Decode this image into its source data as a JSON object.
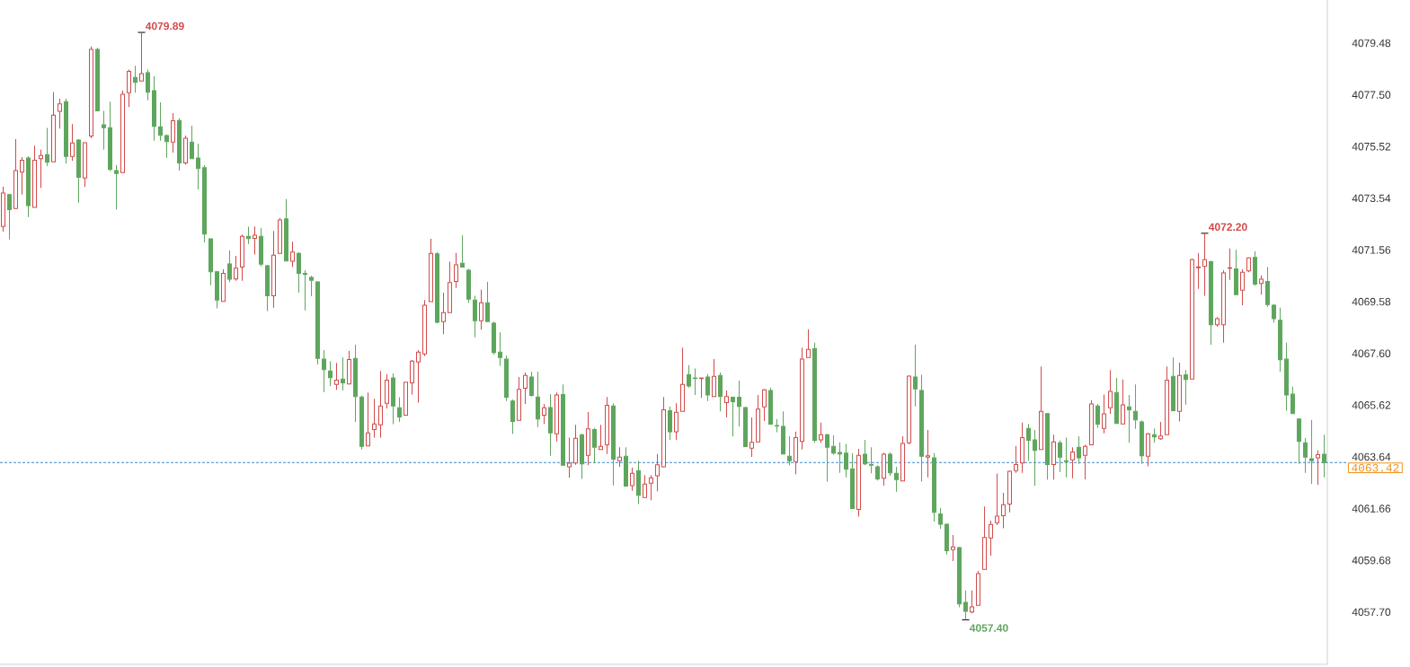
{
  "chart_data": {
    "type": "candlestick",
    "tick_labels": "y",
    "categories": [
      null,
      null,
      null,
      null,
      null,
      null,
      null,
      null,
      null,
      null,
      null,
      null,
      null,
      null,
      null,
      null,
      null,
      null,
      null,
      null,
      null,
      null,
      null,
      null,
      null,
      null,
      null,
      null,
      null,
      null,
      null,
      null,
      null,
      null,
      null,
      null,
      null,
      null,
      null,
      null,
      null,
      null,
      null,
      null,
      null,
      null,
      null,
      null,
      null,
      null,
      null,
      null,
      null,
      null,
      null,
      null,
      null,
      null,
      null,
      null,
      null,
      null,
      null,
      null,
      null,
      null,
      null,
      null,
      null,
      null,
      null,
      null,
      null,
      null,
      null,
      null,
      null,
      null,
      null,
      null,
      null,
      null,
      null,
      null,
      null,
      null,
      null,
      null,
      null,
      null,
      null,
      null,
      null,
      null,
      null,
      null,
      null,
      null,
      null,
      null,
      null,
      null,
      null,
      null,
      null,
      null,
      null,
      null,
      null,
      null,
      null,
      null,
      null,
      null,
      null,
      null,
      null,
      null,
      null,
      null,
      null,
      null,
      null,
      null,
      null,
      null,
      null,
      null,
      null,
      null,
      null,
      null,
      null,
      null,
      null,
      null,
      null,
      null,
      null,
      null,
      null,
      null,
      null,
      null,
      null,
      null,
      null,
      null,
      null,
      null,
      null,
      null,
      null,
      null,
      null,
      null,
      null,
      null,
      null,
      null,
      null,
      null,
      null,
      null,
      null,
      null,
      null,
      null,
      null,
      null,
      null,
      null,
      null,
      null,
      null,
      null,
      null,
      null,
      null,
      null,
      null,
      null,
      null,
      null,
      null,
      null,
      null,
      null,
      null,
      null,
      null,
      null,
      null,
      null,
      null,
      null,
      null,
      null,
      null,
      null,
      null,
      null,
      null,
      null,
      null,
      null,
      null,
      null,
      null,
      null,
      null
    ],
    "ohlc": [
      [
        4072.46,
        4073.98,
        4072.26,
        4073.74
      ],
      [
        4073.68,
        4073.71,
        4071.96,
        4073.11
      ],
      [
        4073.15,
        4075.8,
        4073.12,
        4074.6
      ],
      [
        4074.54,
        4075.12,
        4073.68,
        4075.0
      ],
      [
        4075.08,
        4075.15,
        4072.82,
        4073.26
      ],
      [
        4073.19,
        4075.55,
        4073.19,
        4075.0
      ],
      [
        4075.06,
        4075.4,
        4073.94,
        4075.18
      ],
      [
        4075.21,
        4076.23,
        4074.77,
        4074.92
      ],
      [
        4074.94,
        4077.61,
        4074.94,
        4076.72
      ],
      [
        4076.87,
        4077.35,
        4076.21,
        4077.15
      ],
      [
        4077.24,
        4077.35,
        4074.87,
        4075.14
      ],
      [
        4075.14,
        4076.38,
        4074.97,
        4075.66
      ],
      [
        4075.77,
        4075.8,
        4073.37,
        4074.34
      ],
      [
        4074.32,
        4075.67,
        4073.97,
        4075.67
      ],
      [
        4075.92,
        4079.35,
        4075.84,
        4079.24
      ],
      [
        4079.24,
        4079.3,
        4076.89,
        4076.89
      ],
      [
        4076.35,
        4076.89,
        4075.4,
        4076.24
      ],
      [
        4076.24,
        4077.24,
        4074.58,
        4074.64
      ],
      [
        4074.6,
        4074.81,
        4073.11,
        4074.49
      ],
      [
        4074.52,
        4077.66,
        4074.52,
        4077.52
      ],
      [
        4077.58,
        4078.47,
        4077.03,
        4078.4
      ],
      [
        4078.17,
        4078.61,
        4077.58,
        4077.98
      ],
      [
        4078.03,
        4079.89,
        4078.03,
        4078.31
      ],
      [
        4078.35,
        4078.47,
        4077.29,
        4077.6
      ],
      [
        4077.66,
        4078.21,
        4075.74,
        4076.29
      ],
      [
        4076.28,
        4077.21,
        4075.74,
        4075.95
      ],
      [
        4075.94,
        4075.98,
        4075.09,
        4075.71
      ],
      [
        4075.69,
        4076.8,
        4075.29,
        4076.51
      ],
      [
        4076.52,
        4076.6,
        4074.6,
        4074.89
      ],
      [
        4074.89,
        4075.94,
        4074.83,
        4075.84
      ],
      [
        4075.69,
        4076.32,
        4075.06,
        4075.06
      ],
      [
        4075.08,
        4075.63,
        4073.88,
        4074.68
      ],
      [
        4074.71,
        4074.81,
        4071.85,
        4072.17
      ],
      [
        4071.99,
        4071.99,
        4070.21,
        4070.73
      ],
      [
        4070.73,
        4070.76,
        4069.33,
        4069.64
      ],
      [
        4069.59,
        4070.82,
        4069.59,
        4070.67
      ],
      [
        4071.03,
        4071.54,
        4070.33,
        4070.44
      ],
      [
        4070.45,
        4071.34,
        4070.38,
        4070.86
      ],
      [
        4070.91,
        4072.15,
        4070.38,
        4072.08
      ],
      [
        4072.08,
        4072.45,
        4071.79,
        4072.0
      ],
      [
        4072.01,
        4072.46,
        4071.39,
        4072.13
      ],
      [
        4072.08,
        4072.4,
        4070.93,
        4071.02
      ],
      [
        4070.96,
        4070.99,
        4069.22,
        4069.81
      ],
      [
        4069.81,
        4072.29,
        4069.35,
        4071.36
      ],
      [
        4071.43,
        4072.79,
        4071.43,
        4072.71
      ],
      [
        4072.75,
        4073.51,
        4071.14,
        4071.14
      ],
      [
        4071.13,
        4071.88,
        4070.91,
        4071.48
      ],
      [
        4071.43,
        4071.47,
        4069.93,
        4070.67
      ],
      [
        4070.67,
        4070.79,
        4069.25,
        4070.62
      ],
      [
        4070.51,
        4070.57,
        4069.79,
        4070.4
      ],
      [
        4070.34,
        4070.36,
        4067.18,
        4067.41
      ],
      [
        4067.38,
        4067.73,
        4066.12,
        4066.98
      ],
      [
        4066.93,
        4067.31,
        4066.35,
        4066.67
      ],
      [
        4066.41,
        4067.24,
        4066.21,
        4066.58
      ],
      [
        4066.62,
        4067.44,
        4066.18,
        4066.47
      ],
      [
        4066.43,
        4067.7,
        4066.43,
        4067.37
      ],
      [
        4067.41,
        4067.93,
        4064.98,
        4065.95
      ],
      [
        4065.93,
        4065.98,
        4063.92,
        4064.04
      ],
      [
        4064.06,
        4066.1,
        4064.06,
        4064.56
      ],
      [
        4064.69,
        4065.86,
        4064.38,
        4064.9
      ],
      [
        4064.87,
        4066.93,
        4064.38,
        4065.59
      ],
      [
        4065.69,
        4066.81,
        4065.49,
        4066.58
      ],
      [
        4066.66,
        4066.83,
        4064.89,
        4065.59
      ],
      [
        4065.52,
        4065.92,
        4064.98,
        4065.17
      ],
      [
        4065.24,
        4066.5,
        4065.24,
        4066.5
      ],
      [
        4066.47,
        4067.35,
        4066.03,
        4067.31
      ],
      [
        4067.27,
        4067.73,
        4065.72,
        4067.65
      ],
      [
        4067.58,
        4069.64,
        4067.5,
        4069.45
      ],
      [
        4069.58,
        4071.99,
        4069.58,
        4071.43
      ],
      [
        4071.41,
        4071.48,
        4068.76,
        4068.79
      ],
      [
        4068.82,
        4069.93,
        4068.34,
        4069.16
      ],
      [
        4069.16,
        4071.11,
        4069.16,
        4070.31
      ],
      [
        4070.36,
        4071.45,
        4070.11,
        4070.99
      ],
      [
        4071.05,
        4072.12,
        4070.91,
        4070.91
      ],
      [
        4070.79,
        4070.84,
        4069.54,
        4069.68
      ],
      [
        4069.64,
        4069.81,
        4068.22,
        4068.85
      ],
      [
        4068.85,
        4070.04,
        4068.51,
        4069.54
      ],
      [
        4069.54,
        4070.34,
        4068.82,
        4068.82
      ],
      [
        4068.76,
        4068.82,
        4067.56,
        4067.63
      ],
      [
        4067.65,
        4068.41,
        4067.13,
        4067.44
      ],
      [
        4067.38,
        4067.52,
        4065.78,
        4065.92
      ],
      [
        4065.78,
        4065.84,
        4064.52,
        4065.0
      ],
      [
        4065.04,
        4066.7,
        4065.04,
        4066.22
      ],
      [
        4066.27,
        4066.87,
        4065.67,
        4066.76
      ],
      [
        4066.7,
        4066.9,
        4065.95,
        4065.99
      ],
      [
        4065.93,
        4066.9,
        4064.78,
        4065.09
      ],
      [
        4065.24,
        4065.67,
        4064.9,
        4065.52
      ],
      [
        4065.53,
        4066.04,
        4063.68,
        4064.56
      ],
      [
        4064.52,
        4066.1,
        4064.23,
        4066.01
      ],
      [
        4066.03,
        4066.41,
        4063.32,
        4063.32
      ],
      [
        4063.26,
        4064.38,
        4062.84,
        4063.4
      ],
      [
        4063.41,
        4064.87,
        4063.34,
        4064.35
      ],
      [
        4064.49,
        4064.52,
        4062.8,
        4063.37
      ],
      [
        4063.7,
        4065.36,
        4063.32,
        4064.71
      ],
      [
        4064.69,
        4064.75,
        4063.41,
        4064.01
      ],
      [
        4063.92,
        4064.87,
        4063.92,
        4064.04
      ],
      [
        4064.1,
        4065.93,
        4063.75,
        4065.61
      ],
      [
        4065.59,
        4065.69,
        4062.55,
        4063.55
      ],
      [
        4063.49,
        4064.01,
        4063.26,
        4063.63
      ],
      [
        4063.66,
        4064.01,
        4062.52,
        4062.52
      ],
      [
        4062.54,
        4063.23,
        4062.34,
        4063.01
      ],
      [
        4063.11,
        4063.49,
        4061.83,
        4062.17
      ],
      [
        4062.08,
        4062.94,
        4062.08,
        4062.6
      ],
      [
        4062.63,
        4062.94,
        4061.98,
        4062.84
      ],
      [
        4062.92,
        4063.75,
        4062.32,
        4063.34
      ],
      [
        4063.26,
        4065.93,
        4063.24,
        4065.44
      ],
      [
        4065.41,
        4065.57,
        4064.29,
        4064.6
      ],
      [
        4064.6,
        4065.69,
        4064.29,
        4065.35
      ],
      [
        4065.38,
        4067.82,
        4065.38,
        4066.41
      ],
      [
        4066.79,
        4067.15,
        4066.29,
        4066.35
      ],
      [
        4066.66,
        4067.02,
        4066.01,
        4066.64
      ],
      [
        4066.64,
        4066.66,
        4065.9,
        4066.66
      ],
      [
        4066.7,
        4066.81,
        4065.78,
        4066.01
      ],
      [
        4065.95,
        4067.38,
        4065.95,
        4066.72
      ],
      [
        4066.76,
        4066.87,
        4065.38,
        4065.95
      ],
      [
        4065.72,
        4066.18,
        4065.15,
        4065.95
      ],
      [
        4065.92,
        4065.95,
        4064.43,
        4065.75
      ],
      [
        4065.92,
        4066.56,
        4064.81,
        4065.57
      ],
      [
        4065.53,
        4065.55,
        4064.03,
        4064.03
      ],
      [
        4063.97,
        4065.15,
        4063.64,
        4064.2
      ],
      [
        4064.21,
        4066.01,
        4064.21,
        4065.47
      ],
      [
        4065.55,
        4066.24,
        4065.01,
        4066.21
      ],
      [
        4066.18,
        4066.29,
        4064.89,
        4064.89
      ],
      [
        4064.84,
        4065.09,
        4064.58,
        4064.82
      ],
      [
        4064.81,
        4065.38,
        4063.75,
        4063.75
      ],
      [
        4063.66,
        4064.43,
        4063.32,
        4063.49
      ],
      [
        4063.46,
        4064.61,
        4062.98,
        4064.38
      ],
      [
        4064.23,
        4067.82,
        4063.92,
        4067.38
      ],
      [
        4067.44,
        4068.53,
        4067.44,
        4067.75
      ],
      [
        4067.79,
        4068.01,
        4064.18,
        4064.27
      ],
      [
        4064.29,
        4064.95,
        4064.18,
        4064.49
      ],
      [
        4064.49,
        4064.52,
        4062.69,
        4064.01
      ],
      [
        4064.04,
        4064.46,
        4063.72,
        4063.78
      ],
      [
        4063.81,
        4064.2,
        4063.03,
        4063.75
      ],
      [
        4063.78,
        4064.14,
        4062.86,
        4063.17
      ],
      [
        4063.18,
        4063.78,
        4061.66,
        4061.66
      ],
      [
        4061.63,
        4063.95,
        4061.35,
        4063.7
      ],
      [
        4063.74,
        4064.29,
        4063.32,
        4063.37
      ],
      [
        4063.35,
        4064.01,
        4063.01,
        4063.32
      ],
      [
        4063.26,
        4063.32,
        4062.74,
        4062.8
      ],
      [
        4062.82,
        4063.8,
        4062.54,
        4063.74
      ],
      [
        4063.74,
        4063.81,
        4062.92,
        4063.03
      ],
      [
        4063.01,
        4063.26,
        4062.31,
        4062.77
      ],
      [
        4062.72,
        4064.43,
        4062.72,
        4064.15
      ],
      [
        4064.18,
        4066.76,
        4064.12,
        4066.73
      ],
      [
        4066.7,
        4067.93,
        4065.57,
        4066.24
      ],
      [
        4066.18,
        4066.78,
        4062.69,
        4063.66
      ],
      [
        4063.63,
        4064.67,
        4062.86,
        4063.68
      ],
      [
        4063.6,
        4063.78,
        4061.16,
        4061.52
      ],
      [
        4061.46,
        4061.68,
        4060.89,
        4061.06
      ],
      [
        4061.06,
        4061.09,
        4059.9,
        4060.05
      ],
      [
        4060.09,
        4060.65,
        4059.65,
        4060.19
      ],
      [
        4060.17,
        4060.19,
        4057.88,
        4058.01
      ],
      [
        4058.07,
        4058.53,
        4057.4,
        4057.73
      ],
      [
        4057.7,
        4058.53,
        4057.65,
        4057.9
      ],
      [
        4057.96,
        4059.27,
        4057.96,
        4059.17
      ],
      [
        4059.33,
        4061.74,
        4059.33,
        4060.55
      ],
      [
        4060.54,
        4061.2,
        4059.86,
        4061.05
      ],
      [
        4061.12,
        4063.0,
        4061.03,
        4061.37
      ],
      [
        4061.39,
        4062.26,
        4060.91,
        4061.81
      ],
      [
        4061.83,
        4063.11,
        4061.52,
        4063.09
      ],
      [
        4063.11,
        4064.06,
        4063.03,
        4063.35
      ],
      [
        4063.41,
        4064.95,
        4063.03,
        4064.38
      ],
      [
        4064.73,
        4064.9,
        4063.49,
        4064.27
      ],
      [
        4064.29,
        4064.67,
        4062.54,
        4063.89
      ],
      [
        4063.92,
        4067.1,
        4063.92,
        4065.38
      ],
      [
        4065.3,
        4065.32,
        4062.77,
        4063.35
      ],
      [
        4063.35,
        4064.49,
        4062.77,
        4064.21
      ],
      [
        4064.18,
        4064.27,
        4063.06,
        4063.63
      ],
      [
        4063.49,
        4064.38,
        4062.86,
        4063.46
      ],
      [
        4063.53,
        4064.01,
        4062.82,
        4063.83
      ],
      [
        4064.01,
        4064.43,
        4063.37,
        4063.6
      ],
      [
        4063.7,
        4064.1,
        4062.78,
        4064.04
      ],
      [
        4064.1,
        4065.81,
        4064.1,
        4065.67
      ],
      [
        4065.59,
        4065.67,
        4064.75,
        4064.89
      ],
      [
        4064.73,
        4066.03,
        4064.54,
        4065.29
      ],
      [
        4065.52,
        4066.96,
        4065.29,
        4066.15
      ],
      [
        4066.1,
        4066.66,
        4064.92,
        4064.92
      ],
      [
        4064.9,
        4066.6,
        4064.9,
        4065.63
      ],
      [
        4065.55,
        4066.01,
        4064.18,
        4065.44
      ],
      [
        4065.38,
        4066.41,
        4064.71,
        4065.06
      ],
      [
        4064.98,
        4065.04,
        4063.37,
        4063.68
      ],
      [
        4063.66,
        4064.56,
        4063.28,
        4064.52
      ],
      [
        4064.49,
        4064.73,
        4064.18,
        4064.4
      ],
      [
        4064.33,
        4064.98,
        4064.29,
        4064.44
      ],
      [
        4064.49,
        4067.1,
        4064.49,
        4066.58
      ],
      [
        4066.72,
        4067.44,
        4065.41,
        4065.41
      ],
      [
        4065.38,
        4067.25,
        4065.0,
        4066.76
      ],
      [
        4066.78,
        4066.96,
        4065.64,
        4066.6
      ],
      [
        4066.62,
        4071.22,
        4066.62,
        4071.19
      ],
      [
        4070.88,
        4071.45,
        4070.07,
        4070.91
      ],
      [
        4070.93,
        4072.2,
        4069.81,
        4071.19
      ],
      [
        4071.11,
        4071.15,
        4067.93,
        4068.7
      ],
      [
        4068.7,
        4068.99,
        4068.62,
        4068.93
      ],
      [
        4068.7,
        4070.79,
        4068.01,
        4070.68
      ],
      [
        4070.86,
        4071.62,
        4070.42,
        4070.88
      ],
      [
        4070.84,
        4071.57,
        4069.85,
        4069.85
      ],
      [
        4070.02,
        4070.82,
        4069.45,
        4070.71
      ],
      [
        4070.76,
        4071.28,
        4070.71,
        4071.26
      ],
      [
        4071.28,
        4071.51,
        4070.19,
        4070.25
      ],
      [
        4070.28,
        4070.59,
        4069.85,
        4070.44
      ],
      [
        4070.36,
        4070.91,
        4069.39,
        4069.47
      ],
      [
        4069.45,
        4069.48,
        4068.78,
        4068.93
      ],
      [
        4068.87,
        4069.35,
        4066.9,
        4067.36
      ],
      [
        4067.38,
        4068.01,
        4065.41,
        4066.01
      ],
      [
        4066.04,
        4066.33,
        4065.3,
        4065.3
      ],
      [
        4065.09,
        4065.12,
        4063.37,
        4064.23
      ],
      [
        4064.18,
        4064.37,
        4063.03,
        4063.63
      ],
      [
        4063.57,
        4065.06,
        4062.61,
        4063.49
      ],
      [
        4063.6,
        4063.89,
        4062.57,
        4063.72
      ],
      [
        4063.74,
        4064.49,
        4062.86,
        4063.42
      ]
    ],
    "colors": [
      "#d24a4a",
      "#5ea65e",
      "#d24a4a",
      "#d24a4a",
      "#5ea65e",
      "#d24a4a",
      "#d24a4a",
      "#5ea65e",
      "#d24a4a",
      "#d24a4a",
      "#5ea65e",
      "#d24a4a",
      "#5ea65e",
      "#d24a4a",
      "#d24a4a",
      "#5ea65e",
      "#5ea65e",
      "#5ea65e",
      "#5ea65e",
      "#d24a4a",
      "#d24a4a",
      "#5ea65e",
      "#d24a4a",
      "#5ea65e",
      "#5ea65e",
      "#5ea65e",
      "#5ea65e",
      "#d24a4a",
      "#5ea65e",
      "#d24a4a",
      "#5ea65e",
      "#5ea65e",
      "#5ea65e",
      "#5ea65e",
      "#5ea65e",
      "#d24a4a",
      "#5ea65e",
      "#d24a4a",
      "#d24a4a",
      "#5ea65e",
      "#d24a4a",
      "#5ea65e",
      "#5ea65e",
      "#d24a4a",
      "#d24a4a",
      "#5ea65e",
      "#d24a4a",
      "#5ea65e",
      "#5ea65e",
      "#5ea65e",
      "#5ea65e",
      "#5ea65e",
      "#5ea65e",
      "#d24a4a",
      "#5ea65e",
      "#d24a4a",
      "#5ea65e",
      "#5ea65e",
      "#d24a4a",
      "#d24a4a",
      "#d24a4a",
      "#d24a4a",
      "#5ea65e",
      "#5ea65e",
      "#d24a4a",
      "#d24a4a",
      "#d24a4a",
      "#d24a4a",
      "#d24a4a",
      "#5ea65e",
      "#d24a4a",
      "#d24a4a",
      "#d24a4a",
      "#5ea65e",
      "#5ea65e",
      "#5ea65e",
      "#d24a4a",
      "#5ea65e",
      "#5ea65e",
      "#5ea65e",
      "#5ea65e",
      "#5ea65e",
      "#d24a4a",
      "#d24a4a",
      "#5ea65e",
      "#5ea65e",
      "#d24a4a",
      "#5ea65e",
      "#d24a4a",
      "#5ea65e",
      "#d24a4a",
      "#d24a4a",
      "#5ea65e",
      "#d24a4a",
      "#5ea65e",
      "#d24a4a",
      "#d24a4a",
      "#5ea65e",
      "#d24a4a",
      "#5ea65e",
      "#d24a4a",
      "#5ea65e",
      "#d24a4a",
      "#d24a4a",
      "#d24a4a",
      "#d24a4a",
      "#5ea65e",
      "#d24a4a",
      "#d24a4a",
      "#5ea65e",
      "#5ea65e",
      "#d24a4a",
      "#5ea65e",
      "#d24a4a",
      "#5ea65e",
      "#d24a4a",
      "#5ea65e",
      "#5ea65e",
      "#5ea65e",
      "#d24a4a",
      "#d24a4a",
      "#d24a4a",
      "#5ea65e",
      "#5ea65e",
      "#5ea65e",
      "#5ea65e",
      "#d24a4a",
      "#d24a4a",
      "#d24a4a",
      "#5ea65e",
      "#d24a4a",
      "#5ea65e",
      "#5ea65e",
      "#5ea65e",
      "#5ea65e",
      "#5ea65e",
      "#d24a4a",
      "#5ea65e",
      "#5ea65e",
      "#5ea65e",
      "#d24a4a",
      "#5ea65e",
      "#5ea65e",
      "#d24a4a",
      "#d24a4a",
      "#5ea65e",
      "#5ea65e",
      "#d24a4a",
      "#5ea65e",
      "#5ea65e",
      "#5ea65e",
      "#d24a4a",
      "#5ea65e",
      "#5ea65e",
      "#d24a4a",
      "#d24a4a",
      "#d24a4a",
      "#d24a4a",
      "#d24a4a",
      "#d24a4a",
      "#d24a4a",
      "#d24a4a",
      "#d24a4a",
      "#5ea65e",
      "#5ea65e",
      "#d24a4a",
      "#5ea65e",
      "#d24a4a",
      "#5ea65e",
      "#5ea65e",
      "#d24a4a",
      "#5ea65e",
      "#d24a4a",
      "#d24a4a",
      "#5ea65e",
      "#d24a4a",
      "#d24a4a",
      "#5ea65e",
      "#d24a4a",
      "#5ea65e",
      "#5ea65e",
      "#5ea65e",
      "#d24a4a",
      "#5ea65e",
      "#d24a4a",
      "#d24a4a",
      "#5ea65e",
      "#d24a4a",
      "#5ea65e",
      "#d24a4a",
      "#d24a4a",
      "#d24a4a",
      "#5ea65e",
      "#d24a4a",
      "#d24a4a",
      "#d24a4a",
      "#5ea65e",
      "#d24a4a",
      "#d24a4a",
      "#5ea65e",
      "#d24a4a",
      "#5ea65e",
      "#5ea65e",
      "#5ea65e",
      "#5ea65e",
      "#5ea65e",
      "#5ea65e",
      "#5ea65e",
      "#5ea65e",
      "#d24a4a",
      "#5ea65e"
    ],
    "value_labels": [
      null,
      null,
      null,
      null,
      null,
      null,
      null,
      null,
      null,
      null,
      null,
      null,
      null,
      null,
      null,
      null,
      null,
      null,
      null,
      null,
      null,
      null,
      "4079.89",
      null,
      null,
      null,
      null,
      null,
      null,
      null,
      null,
      null,
      null,
      null,
      null,
      null,
      null,
      null,
      null,
      null,
      null,
      null,
      null,
      null,
      null,
      null,
      null,
      null,
      null,
      null,
      null,
      null,
      null,
      null,
      null,
      null,
      null,
      null,
      null,
      null,
      null,
      null,
      null,
      null,
      null,
      null,
      null,
      null,
      null,
      null,
      null,
      null,
      null,
      null,
      null,
      null,
      null,
      null,
      null,
      null,
      null,
      null,
      null,
      null,
      null,
      null,
      null,
      null,
      null,
      null,
      null,
      null,
      null,
      null,
      null,
      null,
      null,
      null,
      null,
      null,
      null,
      null,
      null,
      null,
      null,
      null,
      null,
      null,
      null,
      null,
      null,
      null,
      null,
      null,
      null,
      null,
      null,
      null,
      null,
      null,
      null,
      null,
      null,
      null,
      null,
      null,
      null,
      null,
      null,
      null,
      null,
      null,
      null,
      null,
      null,
      null,
      null,
      null,
      null,
      null,
      null,
      null,
      null,
      null,
      null,
      null,
      null,
      null,
      null,
      null,
      null,
      null,
      null,
      "4057.40",
      null,
      null,
      null,
      null,
      null,
      null,
      null,
      null,
      null,
      null,
      null,
      null,
      null,
      null,
      null,
      null,
      null,
      null,
      null,
      null,
      null,
      null,
      null,
      null,
      null,
      null,
      null,
      null,
      null,
      null,
      null,
      null,
      null,
      null,
      null,
      null,
      null,
      "4072.20",
      null,
      null,
      null,
      null,
      null,
      null,
      null,
      null,
      null,
      null,
      null,
      null,
      null,
      null,
      null,
      null,
      null,
      null,
      null
    ],
    "ylim": [
      4055.7,
      4081.13
    ],
    "yticks": [
      {
        "value": 4057.7,
        "label": "4057.70"
      },
      4059.68,
      4061.66,
      4063.64,
      4065.62,
      {
        "value": 4067.6,
        "label": "4067.60"
      },
      4069.58,
      4071.56,
      4073.54,
      4075.52,
      {
        "value": 4077.5,
        "label": "4077.50"
      },
      4079.48
    ],
    "ref_lines": [
      {
        "axis": "y",
        "value": 4063.42,
        "label": "4063.42",
        "color": "#3a8ccf",
        "line_style": "dashed"
      }
    ]
  }
}
